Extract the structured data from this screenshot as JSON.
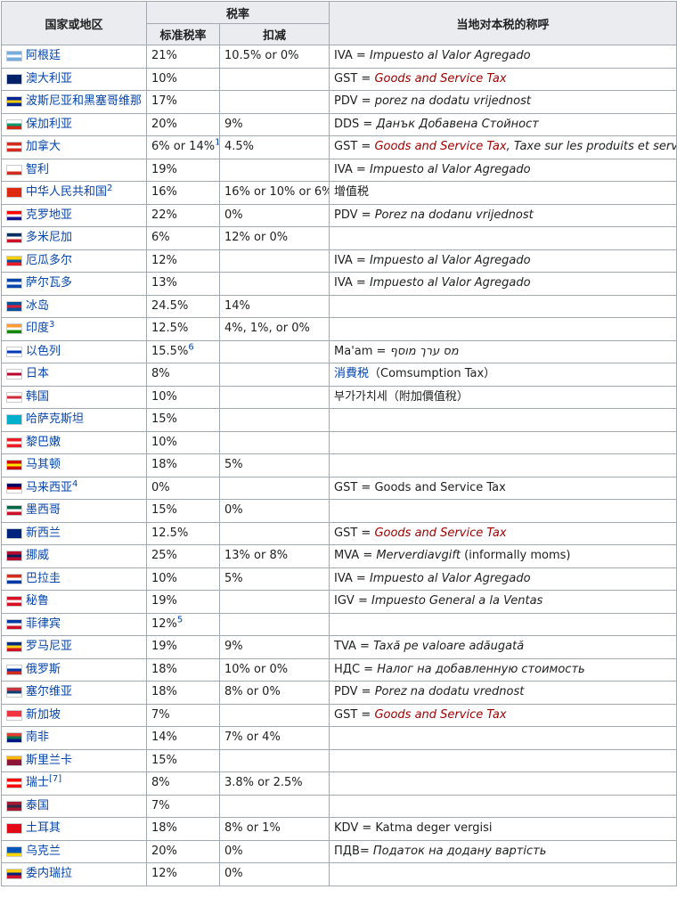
{
  "headers": {
    "country": "国家或地区",
    "tax_rate": "税率",
    "standard": "标准税率",
    "reduced": "扣减",
    "local_name": "当地对本税的称呼"
  },
  "rows": [
    {
      "country": "阿根廷",
      "note": "",
      "std": "21%",
      "std_note": "",
      "red": "10.5% or 0%",
      "abbr": "IVA = ",
      "name": "Impuesto al Valor Agregado",
      "name_style": "italic",
      "extra": "",
      "flag_colors": [
        "#74acdf",
        "#ffffff",
        "#74acdf"
      ]
    },
    {
      "country": "澳大利亚",
      "note": "",
      "std": "10%",
      "std_note": "",
      "red": "",
      "abbr": "GST = ",
      "name": "Goods and Service Tax",
      "name_style": "italic-link",
      "extra": "",
      "flag_colors": [
        "#012169",
        "#012169",
        "#012169"
      ]
    },
    {
      "country": "波斯尼亚和黑塞哥维那",
      "note": "",
      "std": "17%",
      "std_note": "",
      "red": "",
      "abbr": "PDV = ",
      "name": "porez na dodatu vrijednost",
      "name_style": "italic",
      "extra": "",
      "flag_colors": [
        "#002395",
        "#fecb00",
        "#002395"
      ]
    },
    {
      "country": "保加利亚",
      "note": "",
      "std": "20%",
      "std_note": "",
      "red": "9%",
      "abbr": "DDS = ",
      "name": "Данък Добавена Стойност",
      "name_style": "italic",
      "extra": "",
      "flag_colors": [
        "#ffffff",
        "#00966e",
        "#d62612"
      ]
    },
    {
      "country": "加拿大",
      "note": "",
      "std": "6% or 14%",
      "std_note": "1",
      "red": "4.5%",
      "abbr": "GST = ",
      "name": "Goods and Service Tax",
      "name_style": "italic-link",
      "extra": ", Taxe sur les produits et services",
      "flag_colors": [
        "#d52b1e",
        "#ffffff",
        "#d52b1e"
      ]
    },
    {
      "country": "智利",
      "note": "",
      "std": "19%",
      "std_note": "",
      "red": "",
      "abbr": "IVA = ",
      "name": "Impuesto al Valor Agregado",
      "name_style": "italic",
      "extra": "",
      "flag_colors": [
        "#ffffff",
        "#ffffff",
        "#d52b1e"
      ]
    },
    {
      "country": "中华人民共和国",
      "note": "2",
      "std": "16%",
      "std_note": "",
      "red": "16% or 10% or 6%",
      "abbr": "增值税",
      "name": "",
      "name_style": "none",
      "extra": "",
      "flag_colors": [
        "#de2910",
        "#de2910",
        "#de2910"
      ]
    },
    {
      "country": "克罗地亚",
      "note": "",
      "std": "22%",
      "std_note": "",
      "red": "0%",
      "abbr": "PDV = ",
      "name": "Porez na dodanu vrijednost",
      "name_style": "italic",
      "extra": "",
      "flag_colors": [
        "#ff0000",
        "#ffffff",
        "#171796"
      ]
    },
    {
      "country": "多米尼加",
      "note": "",
      "std": "6%",
      "std_note": "",
      "red": "12% or 0%",
      "abbr": "",
      "name": "",
      "name_style": "none",
      "extra": "",
      "flag_colors": [
        "#002d62",
        "#ffffff",
        "#ce1126"
      ]
    },
    {
      "country": "厄瓜多尔",
      "note": "",
      "std": "12%",
      "std_note": "",
      "red": "",
      "abbr": "IVA = ",
      "name": "Impuesto al Valor Agregado",
      "name_style": "italic",
      "extra": "",
      "flag_colors": [
        "#ffd100",
        "#034ea2",
        "#ed1c24"
      ]
    },
    {
      "country": "萨尔瓦多",
      "note": "",
      "std": "13%",
      "std_note": "",
      "red": "",
      "abbr": "IVA = ",
      "name": "Impuesto al Valor Agregado",
      "name_style": "italic",
      "extra": "",
      "flag_colors": [
        "#0047ab",
        "#ffffff",
        "#0047ab"
      ]
    },
    {
      "country": "冰岛",
      "note": "",
      "std": "24.5%",
      "std_note": "",
      "red": "14%",
      "abbr": "",
      "name": "",
      "name_style": "none",
      "extra": "",
      "flag_colors": [
        "#02529c",
        "#dc1e35",
        "#02529c"
      ]
    },
    {
      "country": "印度",
      "note": "3",
      "std": "12.5%",
      "std_note": "",
      "red": "4%, 1%, or 0%",
      "abbr": "",
      "name": "",
      "name_style": "none",
      "extra": "",
      "flag_colors": [
        "#ff9933",
        "#ffffff",
        "#138808"
      ]
    },
    {
      "country": "以色列",
      "note": "",
      "std": "15.5%",
      "std_note": "6",
      "red": "",
      "abbr": "Ma'am = ",
      "name": "מס ערך מוסף",
      "name_style": "italic",
      "extra": "",
      "flag_colors": [
        "#ffffff",
        "#0038b8",
        "#ffffff"
      ]
    },
    {
      "country": "日本",
      "note": "",
      "std": "8%",
      "std_note": "",
      "red": "",
      "abbr": "",
      "name": "消費税",
      "name_style": "plainlink",
      "extra": "（Comsumption Tax）",
      "flag_colors": [
        "#ffffff",
        "#bc002d",
        "#ffffff"
      ]
    },
    {
      "country": "韩国",
      "note": "",
      "std": "10%",
      "std_note": "",
      "red": "",
      "abbr": "부가가치세（附加價值稅）",
      "name": "",
      "name_style": "none",
      "extra": "",
      "flag_colors": [
        "#ffffff",
        "#cd2e3a",
        "#ffffff"
      ]
    },
    {
      "country": "哈萨克斯坦",
      "note": "",
      "std": "15%",
      "std_note": "",
      "red": "",
      "abbr": "",
      "name": "",
      "name_style": "none",
      "extra": "",
      "flag_colors": [
        "#00afca",
        "#00afca",
        "#00afca"
      ]
    },
    {
      "country": "黎巴嫩",
      "note": "",
      "std": "10%",
      "std_note": "",
      "red": "",
      "abbr": "",
      "name": "",
      "name_style": "none",
      "extra": "",
      "flag_colors": [
        "#ed1c24",
        "#ffffff",
        "#ed1c24"
      ]
    },
    {
      "country": "马其顿",
      "note": "",
      "std": "18%",
      "std_note": "",
      "red": "5%",
      "abbr": "",
      "name": "",
      "name_style": "none",
      "extra": "",
      "flag_colors": [
        "#d20000",
        "#ffe600",
        "#d20000"
      ]
    },
    {
      "country": "马来西亚",
      "note": "4",
      "std": "0%",
      "std_note": "",
      "red": "",
      "abbr": "GST = Goods and Service Tax",
      "name": "",
      "name_style": "none",
      "extra": "",
      "flag_colors": [
        "#010066",
        "#cc0001",
        "#ffffff"
      ]
    },
    {
      "country": "墨西哥",
      "note": "",
      "std": "15%",
      "std_note": "",
      "red": "0%",
      "abbr": "",
      "name": "",
      "name_style": "none",
      "extra": "",
      "flag_colors": [
        "#006847",
        "#ffffff",
        "#ce1126"
      ]
    },
    {
      "country": "新西兰",
      "note": "",
      "std": "12.5%",
      "std_note": "",
      "red": "",
      "abbr": "GST = ",
      "name": "Goods and Service Tax",
      "name_style": "italic-link",
      "extra": "",
      "flag_colors": [
        "#00247d",
        "#00247d",
        "#00247d"
      ]
    },
    {
      "country": "挪威",
      "note": "",
      "std": "25%",
      "std_note": "",
      "red": "13% or 8%",
      "abbr": "MVA = ",
      "name": "Merverdiavgift",
      "name_style": "italic",
      "extra": " (informally moms)",
      "flag_colors": [
        "#ba0c2f",
        "#00205b",
        "#ba0c2f"
      ]
    },
    {
      "country": "巴拉圭",
      "note": "",
      "std": "10%",
      "std_note": "",
      "red": "5%",
      "abbr": "IVA = ",
      "name": "Impuesto al Valor Agregado",
      "name_style": "italic",
      "extra": "",
      "flag_colors": [
        "#d52b1e",
        "#ffffff",
        "#0038a8"
      ]
    },
    {
      "country": "秘鲁",
      "note": "",
      "std": "19%",
      "std_note": "",
      "red": "",
      "abbr": "IGV = ",
      "name": "Impuesto General a la Ventas",
      "name_style": "italic",
      "extra": "",
      "flag_colors": [
        "#d91023",
        "#ffffff",
        "#d91023"
      ]
    },
    {
      "country": "菲律宾",
      "note": "",
      "std": "12%",
      "std_note": "5",
      "red": "",
      "abbr": "",
      "name": "",
      "name_style": "none",
      "extra": "",
      "flag_colors": [
        "#0038a8",
        "#ffffff",
        "#ce1126"
      ]
    },
    {
      "country": "罗马尼亚",
      "note": "",
      "std": "19%",
      "std_note": "",
      "red": "9%",
      "abbr": "TVA = ",
      "name": "Taxă pe valoare adăugată",
      "name_style": "italic",
      "extra": "",
      "flag_colors": [
        "#002b7f",
        "#fcd116",
        "#ce1126"
      ]
    },
    {
      "country": "俄罗斯",
      "note": "",
      "std": "18%",
      "std_note": "",
      "red": "10% or 0%",
      "abbr": "НДС = ",
      "name": "Налог на добавленную стоимость",
      "name_style": "italic",
      "extra": "",
      "flag_colors": [
        "#ffffff",
        "#0039a6",
        "#d52b1e"
      ]
    },
    {
      "country": "塞尔维亚",
      "note": "",
      "std": "18%",
      "std_note": "",
      "red": "8% or 0%",
      "abbr": "PDV = ",
      "name": "Porez na dodatu vrednost",
      "name_style": "italic",
      "extra": "",
      "flag_colors": [
        "#c6363c",
        "#0c4076",
        "#ffffff"
      ]
    },
    {
      "country": "新加坡",
      "note": "",
      "std": "7%",
      "std_note": "",
      "red": "",
      "abbr": "GST = ",
      "name": "Goods and Service Tax",
      "name_style": "italic-link",
      "extra": "",
      "flag_colors": [
        "#ef3340",
        "#ef3340",
        "#ffffff"
      ]
    },
    {
      "country": "南非",
      "note": "",
      "std": "14%",
      "std_note": "",
      "red": "7% or 4%",
      "abbr": "",
      "name": "",
      "name_style": "none",
      "extra": "",
      "flag_colors": [
        "#e03c31",
        "#007749",
        "#001489"
      ]
    },
    {
      "country": "斯里兰卡",
      "note": "",
      "std": "15%",
      "std_note": "",
      "red": "",
      "abbr": "",
      "name": "",
      "name_style": "none",
      "extra": "",
      "flag_colors": [
        "#ffb700",
        "#8d153a",
        "#8d153a"
      ]
    },
    {
      "country": "瑞士",
      "note": "[7]",
      "std": "8%",
      "std_note": "",
      "red": "3.8% or 2.5%",
      "abbr": "",
      "name": "",
      "name_style": "none",
      "extra": "",
      "flag_colors": [
        "#ff0000",
        "#ffffff",
        "#ff0000"
      ]
    },
    {
      "country": "泰国",
      "note": "",
      "std": "7%",
      "std_note": "",
      "red": "",
      "abbr": "",
      "name": "",
      "name_style": "none",
      "extra": "",
      "flag_colors": [
        "#a51931",
        "#2d2a4a",
        "#a51931"
      ]
    },
    {
      "country": "土耳其",
      "note": "",
      "std": "18%",
      "std_note": "",
      "red": "8% or 1%",
      "abbr": "KDV = Katma deger vergisi",
      "name": "",
      "name_style": "none",
      "extra": "",
      "flag_colors": [
        "#e30a17",
        "#e30a17",
        "#e30a17"
      ]
    },
    {
      "country": "乌克兰",
      "note": "",
      "std": "20%",
      "std_note": "",
      "red": "0%",
      "abbr": "ПДВ= ",
      "name": "Податок на додану вартість",
      "name_style": "italic",
      "extra": "",
      "flag_colors": [
        "#0057b7",
        "#0057b7",
        "#ffd700"
      ]
    },
    {
      "country": "委内瑞拉",
      "note": "",
      "std": "12%",
      "std_note": "",
      "red": "0%",
      "abbr": "",
      "name": "",
      "name_style": "none",
      "extra": "",
      "flag_colors": [
        "#ffcc00",
        "#00247d",
        "#cf142b"
      ]
    }
  ]
}
